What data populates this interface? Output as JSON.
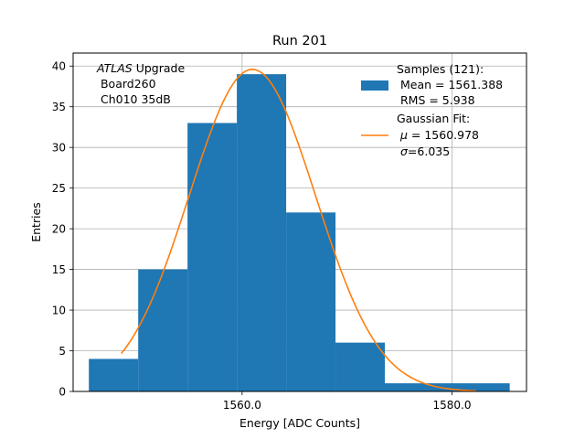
{
  "chart_data": {
    "type": "bar",
    "title": "Run 201",
    "xlabel": "Energy [ADC Counts]",
    "ylabel": "Entries",
    "xlim": [
      1543.9,
      1587.1
    ],
    "ylim": [
      0,
      41.6
    ],
    "grid": true,
    "x_ticks": [
      {
        "value": 1560,
        "label": "1560.0"
      },
      {
        "value": 1580,
        "label": "1580.0"
      }
    ],
    "y_ticks": [
      {
        "value": 0,
        "label": "0"
      },
      {
        "value": 5,
        "label": "5"
      },
      {
        "value": 10,
        "label": "10"
      },
      {
        "value": 15,
        "label": "15"
      },
      {
        "value": 20,
        "label": "20"
      },
      {
        "value": 25,
        "label": "25"
      },
      {
        "value": 30,
        "label": "30"
      },
      {
        "value": 35,
        "label": "35"
      },
      {
        "value": 40,
        "label": "40"
      }
    ],
    "histogram": {
      "name": "Samples",
      "color": "#1f77b4",
      "bin_edges": [
        1545.4,
        1550.1,
        1554.8,
        1559.5,
        1564.2,
        1568.9,
        1573.6,
        1578.3,
        1585.5
      ],
      "counts": [
        4,
        15,
        33,
        39,
        22,
        6,
        1,
        1
      ]
    },
    "fit": {
      "name": "Gaussian Fit",
      "color": "#ff7f0e",
      "mu": 1560.978,
      "sigma": 6.035,
      "amplitude": 39.6,
      "x_range": [
        1548.5,
        1582.3
      ]
    },
    "annotation": {
      "italic_part": "ATLAS",
      "line1_rest": " Upgrade",
      "line2": " Board260",
      "line3": " Ch010 35dB"
    },
    "legend": {
      "placement": "top-right",
      "samples_line1": "Samples (121):",
      "samples_line2": " Mean = 1561.388",
      "samples_line3": " RMS = 5.938",
      "fit_line1": "Gaussian Fit:",
      "fit_line2_symbol": "μ",
      "fit_line2_rest": " = 1560.978",
      "fit_line3_symbol": "σ",
      "fit_line3_rest": "=6.035"
    }
  }
}
